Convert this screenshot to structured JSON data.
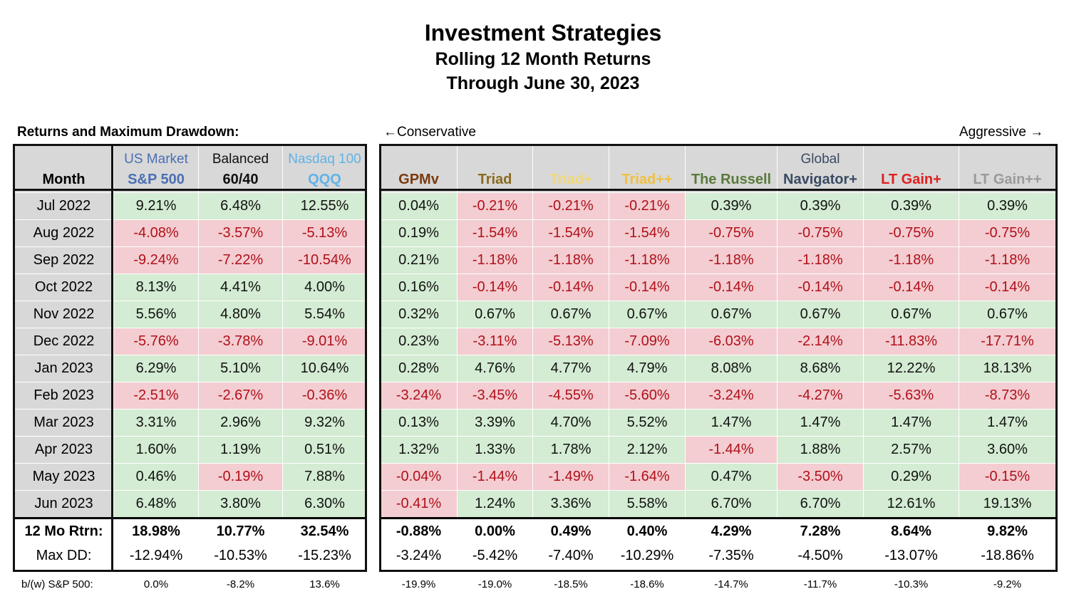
{
  "title": "Investment Strategies",
  "subtitle1": "Rolling 12 Month Returns",
  "subtitle2": "Through June 30, 2023",
  "section_label": "Returns and Maximum Drawdown:",
  "conservative_label": "←Conservative",
  "aggressive_label": "Aggressive →",
  "colors": {
    "positive_bg": "#d3ecd3",
    "negative_bg": "#f3cdd1",
    "negative_text": "#b0101a",
    "header_bg": "#d8d8d8"
  },
  "month_header": "Month",
  "left_columns": [
    {
      "top": "US Market",
      "bottom": "S&P 500",
      "top_color": "#4a6fb5",
      "bottom_color": "#4a6fb5"
    },
    {
      "top": "Balanced",
      "bottom": "60/40",
      "top_color": "#111111",
      "bottom_color": "#111111"
    },
    {
      "top": "Nasdaq 100",
      "bottom": "QQQ",
      "top_color": "#5fb3e8",
      "bottom_color": "#5fb3e8"
    }
  ],
  "right_columns": [
    {
      "top": "",
      "bottom": "GPMv",
      "top_color": "#111111",
      "bottom_color": "#7a3b10"
    },
    {
      "top": "",
      "bottom": "Triad",
      "top_color": "#111111",
      "bottom_color": "#8a6a20"
    },
    {
      "top": "",
      "bottom": "Triad+",
      "top_color": "#111111",
      "bottom_color": "#f0d878"
    },
    {
      "top": "",
      "bottom": "Triad++",
      "top_color": "#111111",
      "bottom_color": "#f0c040"
    },
    {
      "top": "",
      "bottom": "The Russell",
      "top_color": "#111111",
      "bottom_color": "#5a7a3a"
    },
    {
      "top": "Global",
      "bottom": "Navigator+",
      "top_color": "#3a4a63",
      "bottom_color": "#3a4a63"
    },
    {
      "top": "",
      "bottom": "LT Gain+",
      "top_color": "#111111",
      "bottom_color": "#e02020"
    },
    {
      "top": "",
      "bottom": "LT Gain++",
      "top_color": "#111111",
      "bottom_color": "#9a9a9a"
    }
  ],
  "months": [
    "Jul 2022",
    "Aug 2022",
    "Sep 2022",
    "Oct 2022",
    "Nov 2022",
    "Dec 2022",
    "Jan 2023",
    "Feb 2023",
    "Mar 2023",
    "Apr 2023",
    "May 2023",
    "Jun 2023"
  ],
  "left_values": [
    [
      "9.21%",
      "6.48%",
      "12.55%"
    ],
    [
      "-4.08%",
      "-3.57%",
      "-5.13%"
    ],
    [
      "-9.24%",
      "-7.22%",
      "-10.54%"
    ],
    [
      "8.13%",
      "4.41%",
      "4.00%"
    ],
    [
      "5.56%",
      "4.80%",
      "5.54%"
    ],
    [
      "-5.76%",
      "-3.78%",
      "-9.01%"
    ],
    [
      "6.29%",
      "5.10%",
      "10.64%"
    ],
    [
      "-2.51%",
      "-2.67%",
      "-0.36%"
    ],
    [
      "3.31%",
      "2.96%",
      "9.32%"
    ],
    [
      "1.60%",
      "1.19%",
      "0.51%"
    ],
    [
      "0.46%",
      "-0.19%",
      "7.88%"
    ],
    [
      "6.48%",
      "3.80%",
      "6.30%"
    ]
  ],
  "right_values": [
    [
      "0.04%",
      "-0.21%",
      "-0.21%",
      "-0.21%",
      "0.39%",
      "0.39%",
      "0.39%",
      "0.39%"
    ],
    [
      "0.19%",
      "-1.54%",
      "-1.54%",
      "-1.54%",
      "-0.75%",
      "-0.75%",
      "-0.75%",
      "-0.75%"
    ],
    [
      "0.21%",
      "-1.18%",
      "-1.18%",
      "-1.18%",
      "-1.18%",
      "-1.18%",
      "-1.18%",
      "-1.18%"
    ],
    [
      "0.16%",
      "-0.14%",
      "-0.14%",
      "-0.14%",
      "-0.14%",
      "-0.14%",
      "-0.14%",
      "-0.14%"
    ],
    [
      "0.32%",
      "0.67%",
      "0.67%",
      "0.67%",
      "0.67%",
      "0.67%",
      "0.67%",
      "0.67%"
    ],
    [
      "0.23%",
      "-3.11%",
      "-5.13%",
      "-7.09%",
      "-6.03%",
      "-2.14%",
      "-11.83%",
      "-17.71%"
    ],
    [
      "0.28%",
      "4.76%",
      "4.77%",
      "4.79%",
      "8.08%",
      "8.68%",
      "12.22%",
      "18.13%"
    ],
    [
      "-3.24%",
      "-3.45%",
      "-4.55%",
      "-5.60%",
      "-3.24%",
      "-4.27%",
      "-5.63%",
      "-8.73%"
    ],
    [
      "0.13%",
      "3.39%",
      "4.70%",
      "5.52%",
      "1.47%",
      "1.47%",
      "1.47%",
      "1.47%"
    ],
    [
      "1.32%",
      "1.33%",
      "1.78%",
      "2.12%",
      "-1.44%",
      "1.88%",
      "2.57%",
      "3.60%"
    ],
    [
      "-0.04%",
      "-1.44%",
      "-1.49%",
      "-1.64%",
      "0.47%",
      "-3.50%",
      "0.29%",
      "-0.15%"
    ],
    [
      "-0.41%",
      "1.24%",
      "3.36%",
      "5.58%",
      "6.70%",
      "6.70%",
      "12.61%",
      "19.13%"
    ]
  ],
  "total_label": "12 Mo Rtrn:",
  "left_total": [
    "18.98%",
    "10.77%",
    "32.54%"
  ],
  "right_total": [
    "-0.88%",
    "0.00%",
    "0.49%",
    "0.40%",
    "4.29%",
    "7.28%",
    "8.64%",
    "9.82%"
  ],
  "maxdd_label": "Max DD:",
  "left_maxdd": [
    "-12.94%",
    "-10.53%",
    "-15.23%"
  ],
  "right_maxdd": [
    "-3.24%",
    "-5.42%",
    "-7.40%",
    "-10.29%",
    "-7.35%",
    "-4.50%",
    "-13.07%",
    "-18.86%"
  ],
  "footer_label": "b/(w) S&P 500:",
  "left_footer": [
    "0.0%",
    "-8.2%",
    "13.6%"
  ],
  "right_footer": [
    "-19.9%",
    "-19.0%",
    "-18.5%",
    "-18.6%",
    "-14.7%",
    "-11.7%",
    "-10.3%",
    "-9.2%"
  ]
}
